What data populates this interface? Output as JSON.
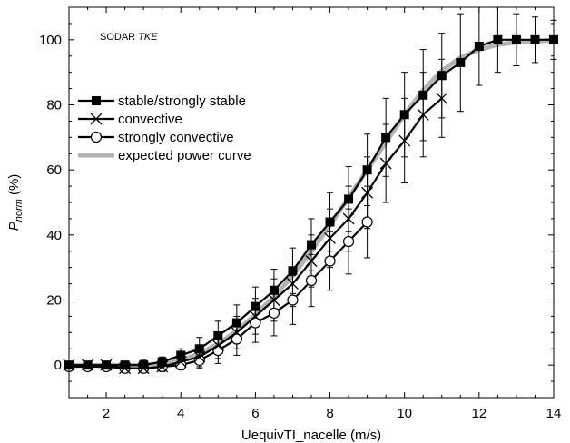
{
  "chart_data": {
    "type": "line",
    "annotation": {
      "text_plain": "SODAR ",
      "text_italic": "TKE"
    },
    "xlabel": "UequivTI_nacelle (m/s)",
    "ylabel": {
      "main": "P",
      "subscript": "norm",
      "suffix": " (%)"
    },
    "xlim": [
      1,
      14
    ],
    "ylim": [
      -10,
      110
    ],
    "xticks": [
      2,
      4,
      6,
      8,
      10,
      12,
      14
    ],
    "yticks": [
      0,
      20,
      40,
      60,
      80,
      100
    ],
    "x_minor_step": 0.5,
    "y_minor_step": 5,
    "grid": false,
    "legend_position": "upper-left",
    "series": [
      {
        "name": "expected power curve",
        "style": "line",
        "color": "#b3b3b3",
        "x": [
          1,
          1.5,
          2,
          2.5,
          3,
          3.5,
          4,
          4.5,
          5,
          5.5,
          6,
          6.5,
          7,
          7.5,
          8,
          8.5,
          9,
          9.5,
          10,
          10.5,
          11,
          11.5,
          12,
          12.5,
          13,
          13.5,
          14
        ],
        "y": [
          0,
          0,
          0,
          0,
          0,
          0.5,
          1.5,
          3.5,
          6.5,
          10.5,
          15.5,
          21,
          27.5,
          35,
          43,
          51.5,
          60,
          68.5,
          77,
          84.5,
          90.5,
          94.5,
          97,
          98.5,
          99.2,
          99.6,
          99.8
        ]
      },
      {
        "name": "stable/strongly stable",
        "style": "line-square",
        "color": "#000000",
        "x": [
          1,
          1.5,
          2,
          2.5,
          3,
          3.5,
          4,
          4.5,
          5,
          5.5,
          6,
          6.5,
          7,
          7.5,
          8,
          8.5,
          9,
          9.5,
          10,
          10.5,
          11,
          11.5,
          12,
          12.5,
          13,
          13.5,
          14
        ],
        "y": [
          0,
          0,
          0,
          0,
          0,
          1,
          3,
          5,
          9,
          13,
          18,
          23,
          29,
          37,
          44,
          51,
          60,
          70,
          77,
          83,
          89,
          93,
          98,
          100,
          100,
          100,
          100
        ],
        "err": [
          1,
          1,
          1,
          1,
          1.5,
          1.5,
          2,
          3.5,
          4.5,
          5.5,
          6,
          6.5,
          7,
          8,
          9,
          10,
          11,
          12,
          13,
          14,
          13,
          15,
          12,
          10,
          8,
          7,
          6
        ]
      },
      {
        "name": "convective",
        "style": "line-x",
        "color": "#000000",
        "x": [
          1,
          1.5,
          2,
          2.5,
          3,
          3.5,
          4,
          4.5,
          5,
          5.5,
          6,
          6.5,
          7,
          7.5,
          8,
          8.5,
          9,
          9.5,
          10,
          10.5,
          11
        ],
        "y": [
          0,
          0,
          0,
          -1,
          -1,
          -0.5,
          1,
          2.5,
          6,
          10,
          15,
          20,
          25,
          32,
          39,
          45,
          53,
          62,
          69,
          77,
          82
        ],
        "err": [
          1,
          1,
          1,
          1,
          1,
          1.5,
          1.5,
          3,
          4,
          5,
          5.5,
          6.5,
          7,
          8,
          9,
          10,
          11,
          12,
          13,
          13,
          12
        ]
      },
      {
        "name": "strongly convective",
        "style": "line-circle",
        "color": "#000000",
        "x": [
          1,
          1.5,
          2,
          2.5,
          3,
          3.5,
          4,
          4.5,
          5,
          5.5,
          6,
          6.5,
          7,
          7.5,
          8,
          8.5,
          9
        ],
        "y": [
          -0.5,
          -0.5,
          -0.5,
          -1,
          -1,
          -0.5,
          0,
          1.5,
          4.5,
          8,
          13,
          16,
          20,
          26,
          32,
          38,
          44
        ],
        "err": [
          1,
          1,
          1,
          1,
          1,
          1,
          1.5,
          2.5,
          4,
          5,
          6,
          7,
          7.5,
          8,
          9,
          10,
          11
        ]
      }
    ]
  }
}
